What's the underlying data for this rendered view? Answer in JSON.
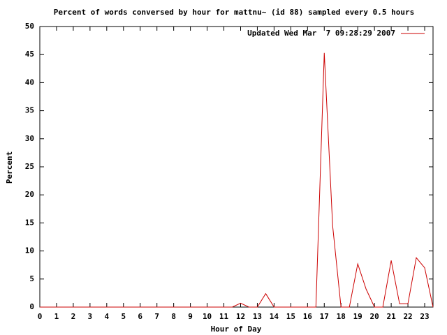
{
  "chart_data": {
    "type": "line",
    "title": "Percent of words conversed by hour for mattnu~ (id 88) sampled every 0.5 hours",
    "xlabel": "Hour of Day",
    "ylabel": "Percent",
    "x": [
      0,
      0.5,
      1,
      1.5,
      2,
      2.5,
      3,
      3.5,
      4,
      4.5,
      5,
      5.5,
      6,
      6.5,
      7,
      7.5,
      8,
      8.5,
      9,
      9.5,
      10,
      10.5,
      11,
      11.5,
      12,
      12.5,
      13,
      13.5,
      14,
      14.5,
      15,
      15.5,
      16,
      16.5,
      17,
      17.5,
      18,
      18.5,
      19,
      19.5,
      20,
      20.5,
      21,
      21.5,
      22,
      22.5,
      23,
      23.5
    ],
    "series": [
      {
        "name": "Updated Wed Mar  7 09:28:29 2007",
        "color": "#cc0000",
        "values": [
          0,
          0,
          0,
          0,
          0,
          0,
          0,
          0,
          0,
          0,
          0,
          0,
          0,
          0,
          0,
          0,
          0,
          0,
          0,
          0,
          0,
          0,
          0,
          0,
          0.7,
          0,
          0,
          2.4,
          0,
          0,
          0,
          0,
          0,
          0,
          45.3,
          14.5,
          0,
          0,
          7.7,
          3.2,
          0,
          0,
          8.3,
          0.6,
          0.6,
          8.8,
          7.0,
          0
        ]
      }
    ],
    "xlim": [
      0,
      23.5
    ],
    "ylim": [
      0,
      50
    ],
    "xticks": [
      0,
      1,
      2,
      3,
      4,
      5,
      6,
      7,
      8,
      9,
      10,
      11,
      12,
      13,
      14,
      15,
      16,
      17,
      18,
      19,
      20,
      21,
      22,
      23
    ],
    "yticks": [
      0,
      5,
      10,
      15,
      20,
      25,
      30,
      35,
      40,
      45,
      50
    ],
    "legend": "top-right",
    "grid": false
  }
}
